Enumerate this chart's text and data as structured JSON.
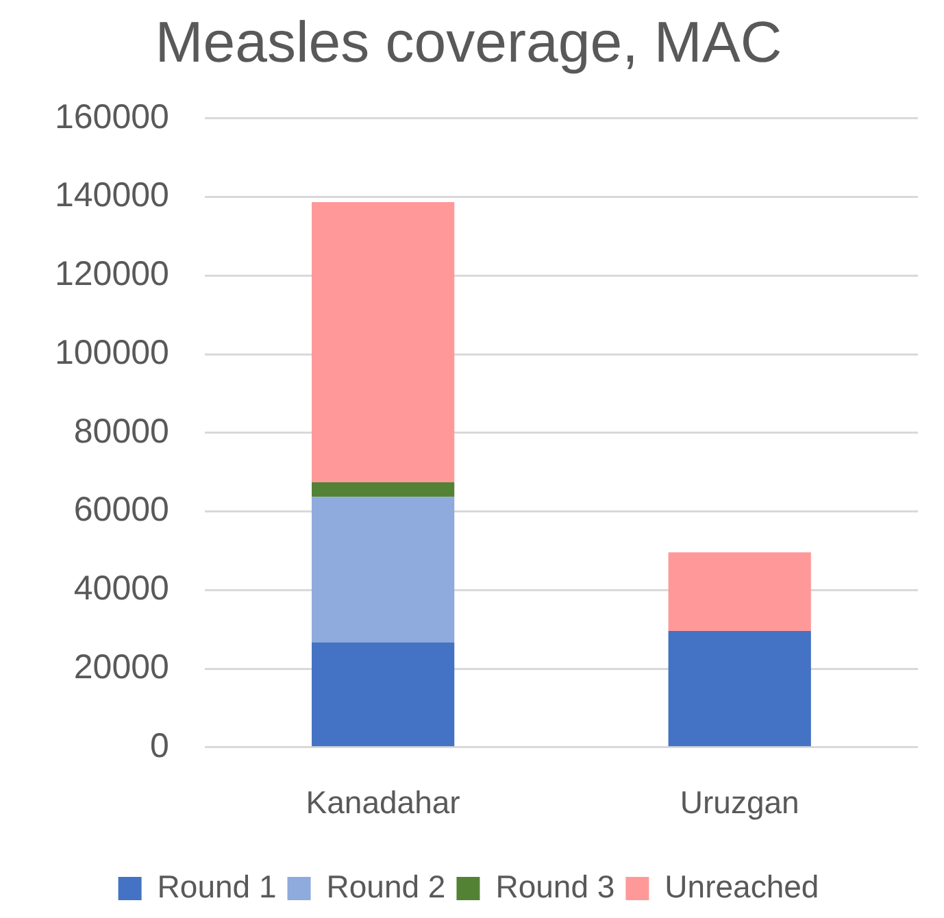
{
  "chart_data": {
    "type": "bar",
    "title": "Measles coverage, MAC",
    "categories": [
      "Kanadahar",
      "Uruzgan"
    ],
    "stacked": true,
    "series": [
      {
        "name": "Round 1",
        "color": "#4472c4",
        "values": [
          26700,
          29600
        ]
      },
      {
        "name": "Round 2",
        "color": "#8faadc",
        "values": [
          37000,
          0
        ]
      },
      {
        "name": "Round 3",
        "color": "#548235",
        "values": [
          3700,
          0
        ]
      },
      {
        "name": "Unreached",
        "color": "#ff9999",
        "values": [
          71300,
          20000
        ]
      }
    ],
    "ylim": [
      0,
      160000
    ],
    "yticks": [
      0,
      20000,
      40000,
      60000,
      80000,
      100000,
      120000,
      140000,
      160000
    ],
    "grid": "y",
    "legend": "bottom"
  }
}
